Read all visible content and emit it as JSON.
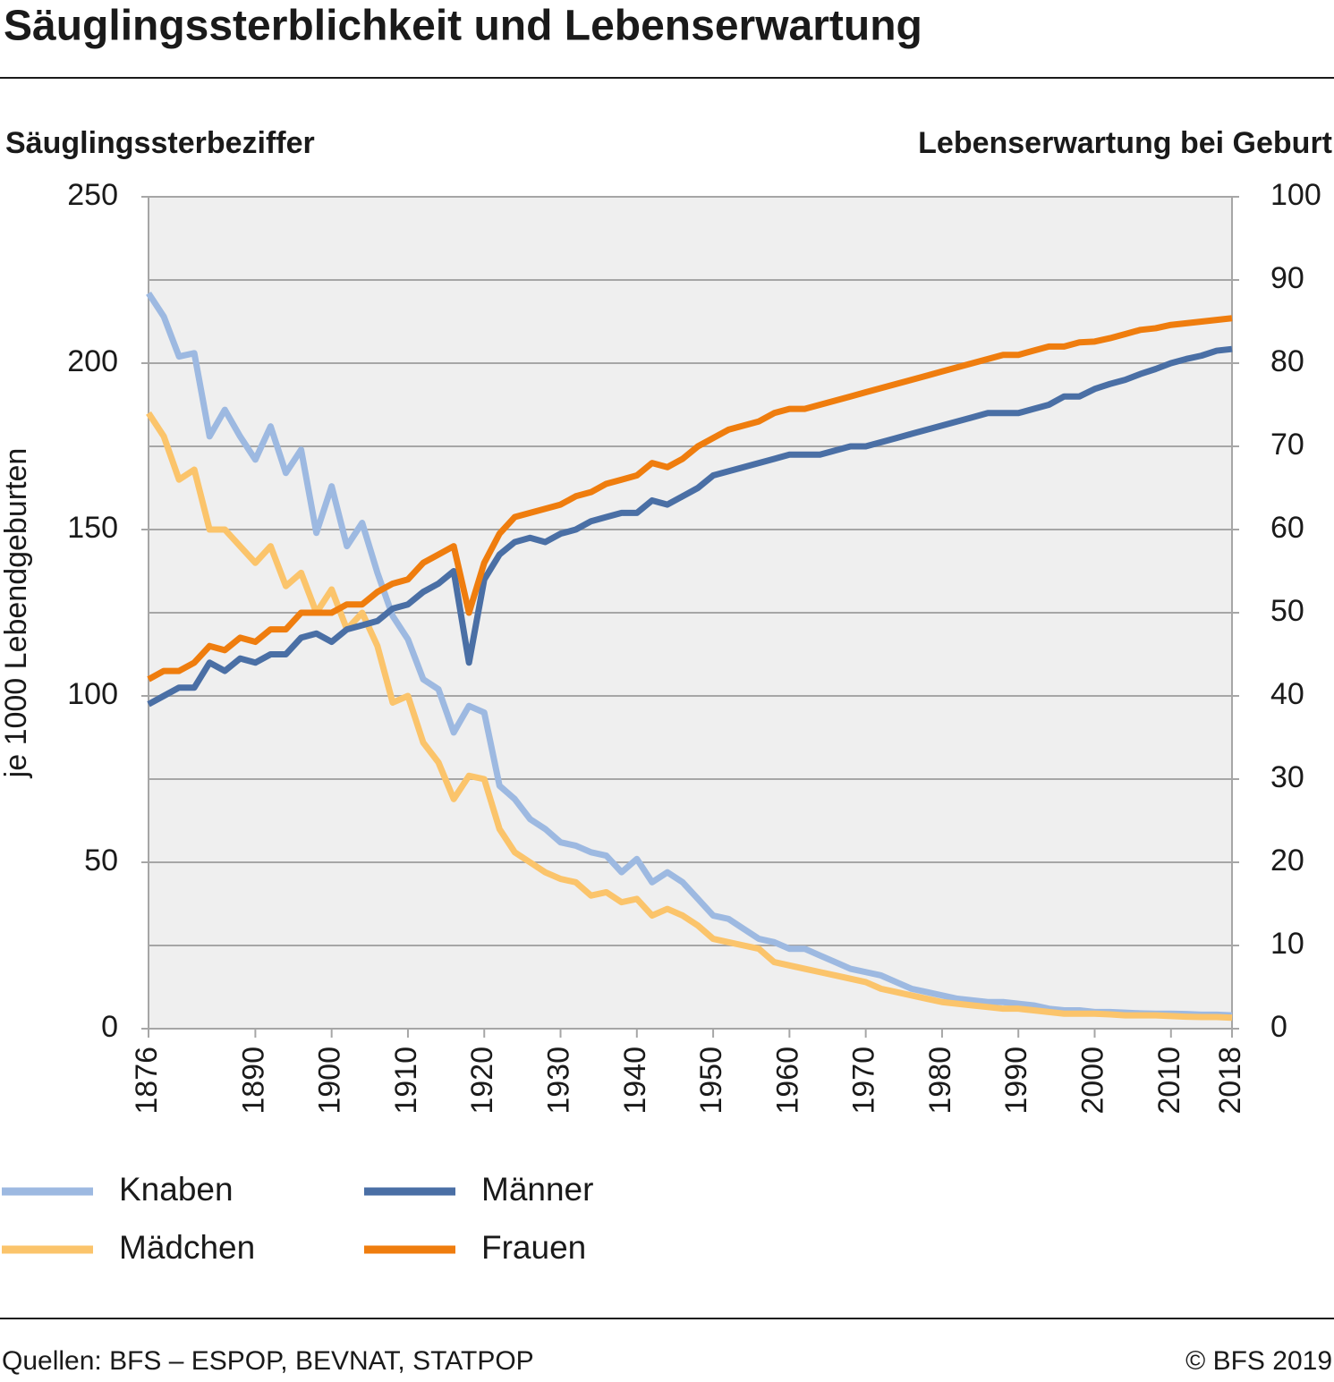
{
  "chart_data": {
    "type": "line",
    "title": "Säuglingssterblichkeit und Lebenserwartung",
    "y_axis_title": "Säuglingssterbeziffer",
    "y_axis_label": "je 1000 Lebendgeburten",
    "y2_axis_title": "Lebenserwartung bei Geburt",
    "source": "Quellen: BFS – ESPOP, BEVNAT, STATPOP",
    "copyright": "© BFS 2019",
    "x": [
      1876,
      1878,
      1880,
      1882,
      1884,
      1886,
      1888,
      1890,
      1892,
      1894,
      1896,
      1898,
      1900,
      1902,
      1904,
      1906,
      1908,
      1910,
      1912,
      1914,
      1916,
      1918,
      1920,
      1922,
      1924,
      1926,
      1928,
      1930,
      1932,
      1934,
      1936,
      1938,
      1940,
      1942,
      1944,
      1946,
      1948,
      1950,
      1952,
      1954,
      1956,
      1958,
      1960,
      1962,
      1964,
      1966,
      1968,
      1970,
      1972,
      1974,
      1976,
      1978,
      1980,
      1982,
      1984,
      1986,
      1988,
      1990,
      1992,
      1994,
      1996,
      1998,
      2000,
      2002,
      2004,
      2006,
      2008,
      2010,
      2012,
      2014,
      2016,
      2018
    ],
    "xlim": [
      1876,
      2018
    ],
    "xticks": [
      1876,
      1890,
      1900,
      1910,
      1920,
      1930,
      1940,
      1950,
      1960,
      1970,
      1980,
      1990,
      2000,
      2010,
      2018
    ],
    "ylim": [
      0,
      250
    ],
    "yticks": [
      0,
      50,
      100,
      150,
      200,
      250
    ],
    "y2lim": [
      0,
      100
    ],
    "y2ticks": [
      0,
      10,
      20,
      30,
      40,
      50,
      60,
      70,
      80,
      90,
      100
    ],
    "grid": true,
    "series": [
      {
        "name": "Knaben",
        "color": "#9db9e1",
        "values": [
          221,
          214,
          202,
          203,
          178,
          186,
          178,
          171,
          181,
          167,
          174,
          149,
          163,
          145,
          152,
          137,
          124,
          117,
          105,
          102,
          89,
          97,
          95,
          73,
          69,
          63,
          60,
          56,
          55,
          53,
          52,
          47,
          51,
          44,
          47,
          44,
          39,
          34,
          33,
          30,
          27,
          26,
          24,
          24,
          22,
          20,
          18,
          17,
          16,
          14,
          12,
          11,
          10,
          9,
          8.5,
          8,
          8,
          7.5,
          7,
          6,
          5.5,
          5.5,
          5,
          5,
          4.8,
          4.6,
          4.5,
          4.5,
          4.4,
          4.2,
          4.2,
          4
        ]
      },
      {
        "name": "Mädchen",
        "color": "#fbc46b",
        "values": [
          185,
          178,
          165,
          168,
          150,
          150,
          145,
          140,
          145,
          133,
          137,
          125,
          132,
          120,
          125,
          115,
          98,
          100,
          86,
          80,
          69,
          76,
          75,
          60,
          53,
          50,
          47,
          45,
          44,
          40,
          41,
          38,
          39,
          34,
          36,
          34,
          31,
          27,
          26,
          25,
          24,
          20,
          19,
          18,
          17,
          16,
          15,
          14,
          12,
          11,
          10,
          9,
          8,
          7.5,
          7,
          6.5,
          6,
          6,
          5.5,
          5,
          4.5,
          4.5,
          4.5,
          4.3,
          4,
          4,
          4,
          3.8,
          3.6,
          3.5,
          3.5,
          3.3
        ]
      },
      {
        "name": "Männer",
        "color": "#4a6fa5",
        "axis": "y2",
        "values": [
          39,
          40,
          41,
          41,
          44,
          43,
          44.5,
          44,
          45,
          45,
          47,
          47.5,
          46.5,
          48,
          48.5,
          49,
          50.5,
          51,
          52.5,
          53.5,
          55,
          44,
          54,
          57,
          58.5,
          59,
          58.5,
          59.5,
          60,
          61,
          61.5,
          62,
          62,
          63.5,
          63,
          64,
          65,
          66.5,
          67,
          67.5,
          68,
          68.5,
          69,
          69,
          69,
          69.5,
          70,
          70,
          70.5,
          71,
          71.5,
          72,
          72.5,
          73,
          73.5,
          74,
          74,
          74,
          74.5,
          75,
          76,
          76,
          76.9,
          77.5,
          78,
          78.7,
          79.3,
          80,
          80.5,
          80.9,
          81.5,
          81.7
        ]
      },
      {
        "name": "Frauen",
        "color": "#ef7d0e",
        "axis": "y2",
        "values": [
          42,
          43,
          43,
          44,
          46,
          45.5,
          47,
          46.5,
          48,
          48,
          50,
          50,
          50,
          51,
          51,
          52.5,
          53.5,
          54,
          56,
          57,
          58,
          50,
          56,
          59.5,
          61.5,
          62,
          62.5,
          63,
          64,
          64.5,
          65.5,
          66,
          66.5,
          68,
          67.5,
          68.5,
          70,
          71,
          72,
          72.5,
          73,
          74,
          74.5,
          74.5,
          75,
          75.5,
          76,
          76.5,
          77,
          77.5,
          78,
          78.5,
          79,
          79.5,
          80,
          80.5,
          81,
          81,
          81.5,
          82,
          82,
          82.5,
          82.6,
          83,
          83.5,
          84,
          84.2,
          84.6,
          84.8,
          85,
          85.2,
          85.4
        ]
      }
    ]
  }
}
